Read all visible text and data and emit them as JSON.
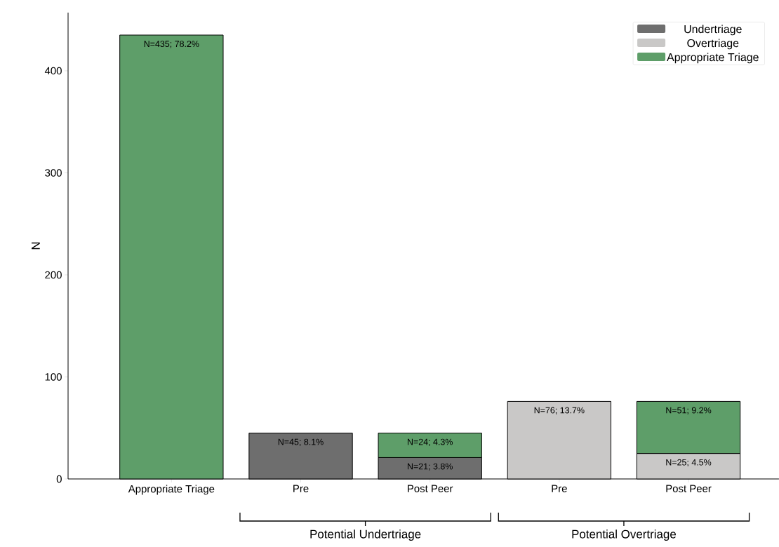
{
  "chart_data": {
    "type": "bar",
    "stacked": true,
    "categories": [
      "Appropriate Triage",
      "Pre",
      "Post Peer",
      "Pre",
      "Post Peer"
    ],
    "ylabel": "N",
    "series": [
      {
        "name": "Undertriage",
        "color": "#6e6e6e",
        "values": [
          null,
          45,
          21,
          null,
          null
        ],
        "value_labels": [
          null,
          "N=45; 8.1%",
          "N=21; 3.8%",
          null,
          null
        ]
      },
      {
        "name": "Overtriage",
        "color": "#c9c8c7",
        "values": [
          null,
          null,
          null,
          76,
          25
        ],
        "value_labels": [
          null,
          null,
          null,
          "N=76; 13.7%",
          "N=25; 4.5%"
        ]
      },
      {
        "name": "Appropriate Triage",
        "color": "#5e9e69",
        "values": [
          435,
          null,
          24,
          null,
          51
        ],
        "value_labels": [
          "N=435; 78.2%",
          null,
          "N=24; 4.3%",
          null,
          "N=51; 9.2%"
        ]
      }
    ],
    "ylim": [
      0,
      457
    ],
    "yticks": [
      0,
      100,
      200,
      300,
      400
    ],
    "legend": "top right",
    "annotations": [
      "Potential Undertriage",
      "Potential Overtriage"
    ]
  }
}
